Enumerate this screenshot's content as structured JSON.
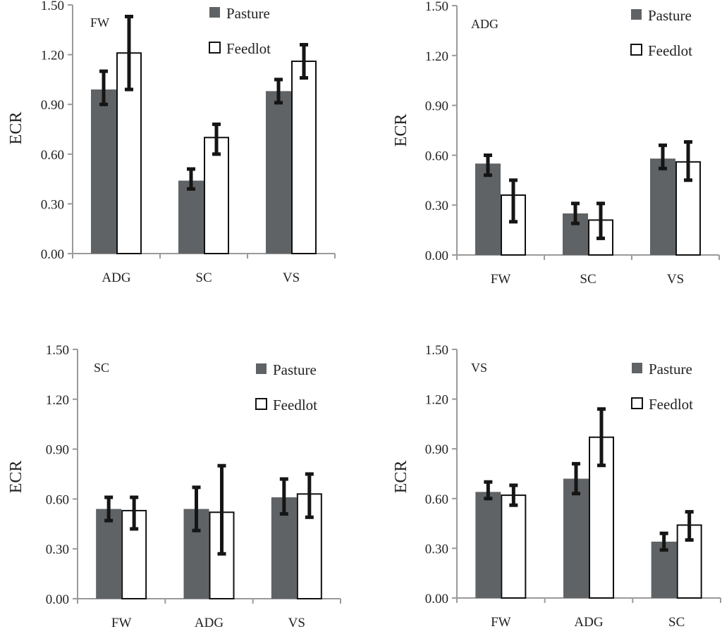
{
  "chart_data": [
    {
      "type": "bar",
      "panel_label": "FW",
      "ylabel": "ECR",
      "ylim": [
        0,
        1.5
      ],
      "yticks": [
        "0.00",
        "0.30",
        "0.60",
        "0.90",
        "1.20",
        "1.50"
      ],
      "categories": [
        "ADG",
        "SC",
        "VS"
      ],
      "legend": [
        "Pasture",
        "Feedlot"
      ],
      "legend_position": "top-right",
      "series": [
        {
          "name": "Pasture",
          "color": "#5f6366",
          "values": [
            0.99,
            0.44,
            0.98
          ],
          "err_high": [
            1.1,
            0.51,
            1.05
          ],
          "err_low": [
            0.9,
            0.39,
            0.91
          ]
        },
        {
          "name": "Feedlot",
          "color": "#ffffff",
          "values": [
            1.21,
            0.7,
            1.16
          ],
          "err_high": [
            1.43,
            0.78,
            1.26
          ],
          "err_low": [
            0.99,
            0.6,
            1.06
          ]
        }
      ]
    },
    {
      "type": "bar",
      "panel_label": "ADG",
      "ylabel": "ECR",
      "ylim": [
        0,
        1.5
      ],
      "yticks": [
        "0.00",
        "0.30",
        "0.60",
        "0.90",
        "1.20",
        "1.50"
      ],
      "categories": [
        "FW",
        "SC",
        "VS"
      ],
      "legend": [
        "Pasture",
        "Feedlot"
      ],
      "legend_position": "top-right",
      "series": [
        {
          "name": "Pasture",
          "color": "#5f6366",
          "values": [
            0.55,
            0.25,
            0.58
          ],
          "err_high": [
            0.6,
            0.31,
            0.66
          ],
          "err_low": [
            0.48,
            0.19,
            0.52
          ]
        },
        {
          "name": "Feedlot",
          "color": "#ffffff",
          "values": [
            0.36,
            0.21,
            0.56
          ],
          "err_high": [
            0.45,
            0.31,
            0.68
          ],
          "err_low": [
            0.2,
            0.1,
            0.45
          ]
        }
      ]
    },
    {
      "type": "bar",
      "panel_label": "SC",
      "ylabel": "ECR",
      "ylim": [
        0,
        1.5
      ],
      "yticks": [
        "0.00",
        "0.30",
        "0.60",
        "0.90",
        "1.20",
        "1.50"
      ],
      "categories": [
        "FW",
        "ADG",
        "VS"
      ],
      "legend": [
        "Pasture",
        "Feedlot"
      ],
      "legend_position": "top-right",
      "series": [
        {
          "name": "Pasture",
          "color": "#5f6366",
          "values": [
            0.54,
            0.54,
            0.61
          ],
          "err_high": [
            0.61,
            0.67,
            0.72
          ],
          "err_low": [
            0.47,
            0.41,
            0.51
          ]
        },
        {
          "name": "Feedlot",
          "color": "#ffffff",
          "values": [
            0.53,
            0.52,
            0.63
          ],
          "err_high": [
            0.61,
            0.8,
            0.75
          ],
          "err_low": [
            0.42,
            0.27,
            0.49
          ]
        }
      ]
    },
    {
      "type": "bar",
      "panel_label": "VS",
      "ylabel": "ECR",
      "ylim": [
        0,
        1.5
      ],
      "yticks": [
        "0.00",
        "0.30",
        "0.60",
        "0.90",
        "1.20",
        "1.50"
      ],
      "categories": [
        "FW",
        "ADG",
        "SC"
      ],
      "legend": [
        "Pasture",
        "Feedlot"
      ],
      "legend_position": "top-right",
      "series": [
        {
          "name": "Pasture",
          "color": "#5f6366",
          "values": [
            0.64,
            0.72,
            0.34
          ],
          "err_high": [
            0.7,
            0.81,
            0.39
          ],
          "err_low": [
            0.6,
            0.63,
            0.29
          ]
        },
        {
          "name": "Feedlot",
          "color": "#ffffff",
          "values": [
            0.62,
            0.97,
            0.44
          ],
          "err_high": [
            0.68,
            1.14,
            0.52
          ],
          "err_low": [
            0.56,
            0.8,
            0.35
          ]
        }
      ]
    }
  ]
}
